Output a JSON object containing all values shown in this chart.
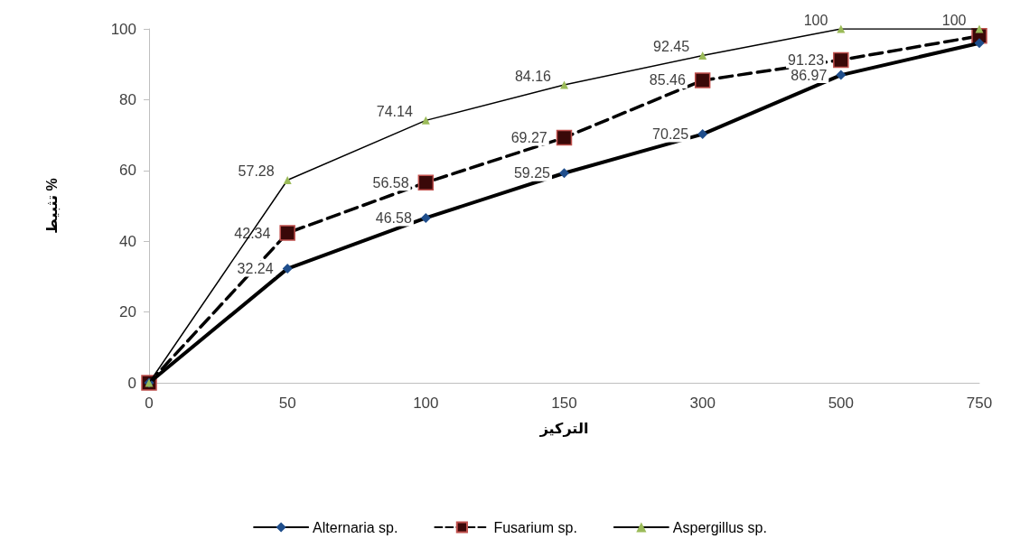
{
  "chart_data": {
    "type": "line",
    "xlabel": "التركيز",
    "ylabel": "تثبيط %",
    "categories": [
      "0",
      "50",
      "100",
      "150",
      "300",
      "500",
      "750"
    ],
    "ylim": [
      0,
      100
    ],
    "yticks": [
      0,
      20,
      40,
      60,
      80,
      100
    ],
    "grid": false,
    "legend": "bottom",
    "series": [
      {
        "name": "Alternaria sp.",
        "color": "#1f4e8c",
        "marker": "diamond",
        "line_style": "solid",
        "values": [
          0,
          32.24,
          46.58,
          59.25,
          70.25,
          86.97,
          96
        ],
        "value_labels": [
          null,
          "32.24",
          "46.58",
          "59.25",
          "70.25",
          "86.97",
          null
        ]
      },
      {
        "name": "Fusarium sp.",
        "color": "#3a0808",
        "marker": "square",
        "line_style": "dashed",
        "values": [
          0,
          42.34,
          56.58,
          69.27,
          85.46,
          91.23,
          98
        ],
        "value_labels": [
          null,
          "42.34",
          "56.58",
          "69.27",
          "85.46",
          "91.23",
          null
        ]
      },
      {
        "name": "Aspergillus sp.",
        "color": "#9bbb59",
        "marker": "triangle",
        "line_style": "solid",
        "values": [
          0,
          57.28,
          74.14,
          84.16,
          92.45,
          100,
          100
        ],
        "value_labels": [
          null,
          "57.28",
          "74.14",
          "84.16",
          "92.45",
          "100",
          "100"
        ]
      }
    ]
  }
}
